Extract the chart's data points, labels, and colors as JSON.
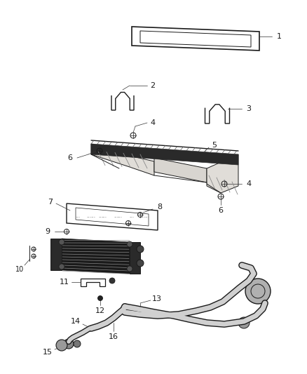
{
  "background_color": "#ffffff",
  "line_color": "#1a1a1a",
  "label_color": "#1a1a1a",
  "dark_color": "#2a2a2a",
  "gray_color": "#888888",
  "light_gray": "#cccccc"
}
